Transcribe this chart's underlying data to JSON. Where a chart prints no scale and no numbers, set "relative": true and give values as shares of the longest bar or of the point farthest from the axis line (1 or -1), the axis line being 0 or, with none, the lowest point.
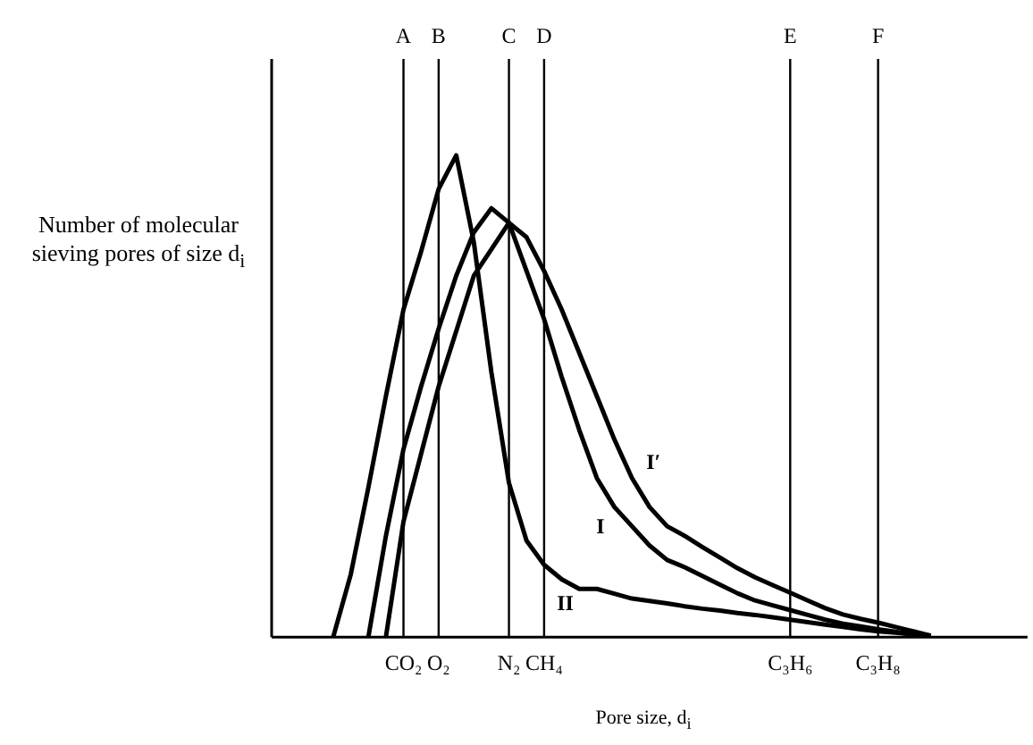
{
  "chart_data": {
    "type": "line",
    "relative": true,
    "xlabel": "Pore size, d$_{i}$",
    "ylabel": "Number of molecular sieving pores of size d$_{i}$",
    "tick_labels": "x",
    "legend": false,
    "marker": "none",
    "line_style": "solid",
    "categories": [
      null,
      null,
      null,
      null,
      null,
      null,
      null,
      "CO₂",
      null,
      "O₂",
      null,
      null,
      null,
      "N₂",
      null,
      "CH₄",
      null,
      null,
      null,
      null,
      null,
      null,
      null,
      null,
      null,
      null,
      null,
      null,
      null,
      "C₃H₆",
      null,
      null,
      null,
      null,
      "C₃H₈",
      null,
      null,
      null,
      null,
      null,
      null,
      null,
      null
    ],
    "series": [
      {
        "name": "II",
        "color": "#000000",
        "values": [
          null,
          null,
          null,
          0,
          0.13,
          0.31,
          0.5,
          0.68,
          0.8,
          0.93,
          1,
          0.82,
          0.55,
          0.32,
          0.2,
          0.15,
          0.12,
          0.1,
          0.1,
          0.09,
          0.08,
          0.075,
          0.07,
          0.064,
          0.059,
          0.055,
          0.05,
          0.046,
          0.041,
          0.036,
          0.031,
          0.026,
          0.021,
          0.016,
          0.012,
          0.009,
          0.006,
          0.003,
          null,
          null,
          null,
          null,
          null
        ]
      },
      {
        "name": "I",
        "color": "#000000",
        "values": [
          null,
          null,
          null,
          null,
          null,
          0,
          0.21,
          0.39,
          0.52,
          0.64,
          0.75,
          0.84,
          0.89,
          0.86,
          0.76,
          0.66,
          0.54,
          0.43,
          0.33,
          0.27,
          0.23,
          0.19,
          0.16,
          0.145,
          0.127,
          0.109,
          0.091,
          0.076,
          0.066,
          0.056,
          0.046,
          0.036,
          0.028,
          0.022,
          0.016,
          0.011,
          0.005,
          null,
          null,
          null,
          null,
          null,
          null
        ]
      },
      {
        "name": "I′",
        "color": "#000000",
        "values": [
          null,
          null,
          null,
          null,
          null,
          null,
          0,
          0.24,
          0.38,
          0.52,
          0.635,
          0.75,
          0.805,
          0.86,
          0.83,
          0.76,
          0.68,
          0.59,
          0.5,
          0.41,
          0.33,
          0.27,
          0.23,
          0.21,
          0.187,
          0.165,
          0.143,
          0.124,
          0.108,
          0.092,
          0.076,
          0.06,
          0.047,
          0.038,
          0.03,
          0.021,
          0.012,
          0.003,
          null,
          null,
          null,
          null,
          null
        ]
      }
    ],
    "ref_lines": [
      {
        "axis": "x",
        "value": "CO₂",
        "label": "A"
      },
      {
        "axis": "x",
        "value": "O₂",
        "label": "B"
      },
      {
        "axis": "x",
        "value": "N₂",
        "label": "C"
      },
      {
        "axis": "x",
        "value": "CH₄",
        "label": "D"
      },
      {
        "axis": "x",
        "value": "C₃H₆",
        "label": "E"
      },
      {
        "axis": "x",
        "value": "C₃H₈",
        "label": "F"
      }
    ]
  }
}
